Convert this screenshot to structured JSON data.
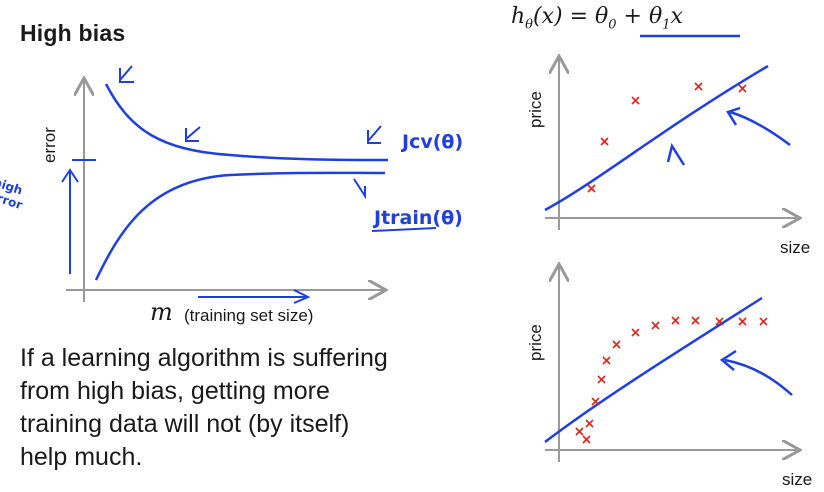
{
  "title": "High bias",
  "paragraph": [
    "If a learning algorithm is suffering",
    "from high bias, getting more",
    "training data will not (by itself)",
    "help much."
  ],
  "learning_curve": {
    "y_label": "error",
    "x_label": "m",
    "x_label_note": "(training set size)",
    "jcv_label": "Jcv(θ)",
    "jtrain_label": "Jtrain(θ)",
    "high_error_label": [
      "high",
      "error"
    ]
  },
  "formula": {
    "h": "h",
    "theta": "θ",
    "x": "(x) = θ",
    "sub0": "0",
    "plus": " + θ",
    "sub1": "1",
    "xvar": "x"
  },
  "plot_top": {
    "y_label": "price",
    "x_label": "size"
  },
  "plot_bottom": {
    "y_label": "price",
    "x_label": "size"
  },
  "colors": {
    "ink": "#1f3fe0",
    "axis": "#999999",
    "points": "#e0241b",
    "text": "#1a1a1a"
  }
}
